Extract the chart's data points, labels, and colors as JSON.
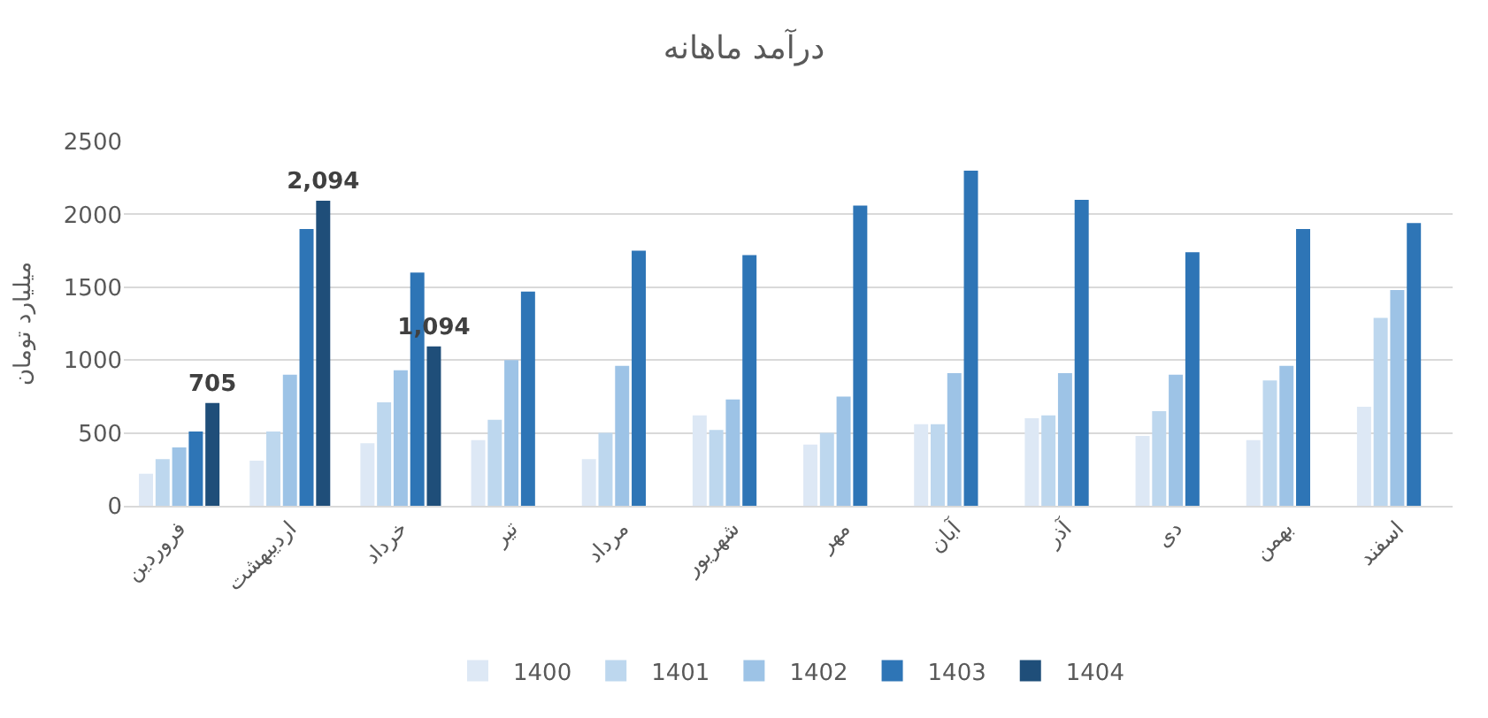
{
  "chart_data": {
    "type": "bar",
    "title": "درآمد ماهانه",
    "ylabel": "میلیارد تومان",
    "categories": [
      "فروردین",
      "اردیبهشت",
      "خرداد",
      "تیر",
      "مرداد",
      "شهریور",
      "مهر",
      "آبان",
      "آذر",
      "دی",
      "بهمن",
      "اسفند"
    ],
    "series": [
      {
        "name": "1400",
        "color": "#dde8f5",
        "values": [
          220,
          310,
          430,
          450,
          320,
          620,
          420,
          560,
          600,
          480,
          450,
          680
        ]
      },
      {
        "name": "1401",
        "color": "#bdd7ee",
        "values": [
          320,
          510,
          710,
          590,
          500,
          520,
          500,
          560,
          620,
          650,
          860,
          1290
        ]
      },
      {
        "name": "1402",
        "color": "#9dc3e6",
        "values": [
          400,
          900,
          930,
          1000,
          960,
          730,
          750,
          910,
          910,
          900,
          960,
          1480
        ]
      },
      {
        "name": "1403",
        "color": "#2e75b6",
        "values": [
          510,
          1900,
          1600,
          1470,
          1750,
          1720,
          2060,
          2300,
          2100,
          1740,
          1900,
          1940
        ]
      },
      {
        "name": "1404",
        "color": "#1f4e79",
        "values": [
          705,
          2094,
          1094,
          null,
          null,
          null,
          null,
          null,
          null,
          null,
          null,
          null
        ],
        "value_labels": [
          "705",
          "2,094",
          "1,094",
          null,
          null,
          null,
          null,
          null,
          null,
          null,
          null,
          null
        ]
      }
    ],
    "ylim": [
      0,
      2500
    ],
    "yticks": [
      0,
      500,
      1000,
      1500,
      2000,
      2500
    ],
    "grid": "y",
    "legend": "bottom"
  }
}
